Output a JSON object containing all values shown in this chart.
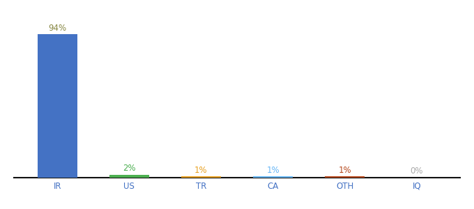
{
  "categories": [
    "IR",
    "US",
    "TR",
    "CA",
    "OTH",
    "IQ"
  ],
  "values": [
    94,
    2,
    1,
    1,
    1,
    0
  ],
  "labels": [
    "94%",
    "2%",
    "1%",
    "1%",
    "1%",
    "0%"
  ],
  "bar_colors": [
    "#4472C4",
    "#4CAF50",
    "#E8A020",
    "#64B5F6",
    "#B5461A",
    "#cccccc"
  ],
  "label_colors": [
    "#888844",
    "#4CAF50",
    "#E8A020",
    "#64B5F6",
    "#B5461A",
    "#aaaaaa"
  ],
  "background_color": "#ffffff",
  "ylim": [
    0,
    100
  ],
  "label_fontsize": 8.5,
  "tick_fontsize": 8.5
}
